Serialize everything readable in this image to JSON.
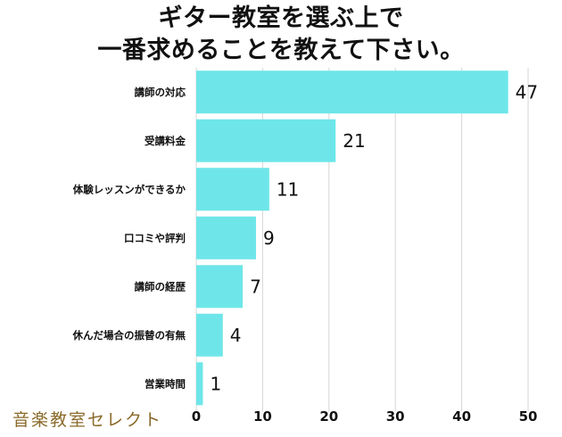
{
  "title_line1": "ギター教室を選ぶ上で",
  "title_line2": "一番求めることを教えて下さい。",
  "watermark": "音楽教室セレクト",
  "colors": {
    "bar": "#6ee6e9",
    "grid": "#d6d6d6",
    "text": "#111111"
  },
  "chart_data": {
    "type": "bar",
    "orientation": "horizontal",
    "categories": [
      "講師の対応",
      "受講料金",
      "体験レッスンができるか",
      "口コミや評判",
      "講師の経歴",
      "休んだ場合の振替の有無",
      "営業時間"
    ],
    "values": [
      47,
      21,
      11,
      9,
      7,
      4,
      1
    ],
    "xlim": [
      0,
      50
    ],
    "xticks": [
      0,
      10,
      20,
      30,
      40,
      50
    ],
    "grid": true
  }
}
